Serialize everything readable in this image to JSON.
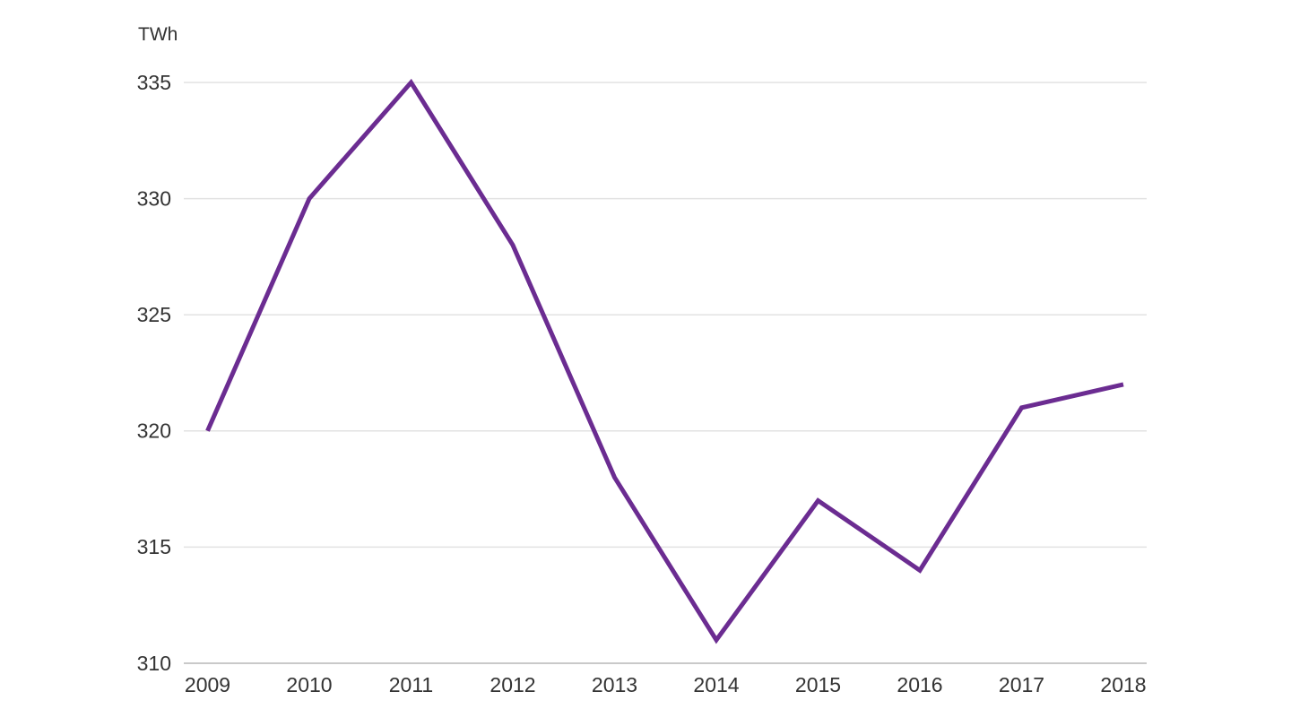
{
  "chart_data": {
    "type": "line",
    "title": "",
    "unit_label": "TWh",
    "categories": [
      "2009",
      "2010",
      "2011",
      "2012",
      "2013",
      "2014",
      "2015",
      "2016",
      "2017",
      "2018"
    ],
    "values": [
      320,
      330,
      335,
      328,
      318,
      311,
      317,
      314,
      321,
      322
    ],
    "y_ticks": [
      310,
      315,
      320,
      325,
      330,
      335
    ],
    "ylim": [
      310,
      335
    ],
    "xlabel": "",
    "ylabel": "TWh",
    "grid": "horizontal",
    "legend": "none",
    "colors": {
      "line": "#6b2c91",
      "gridline": "#e2e2e2",
      "axis_line": "#c9c9c9",
      "axis_text": "#333333",
      "background": "#ffffff"
    }
  }
}
